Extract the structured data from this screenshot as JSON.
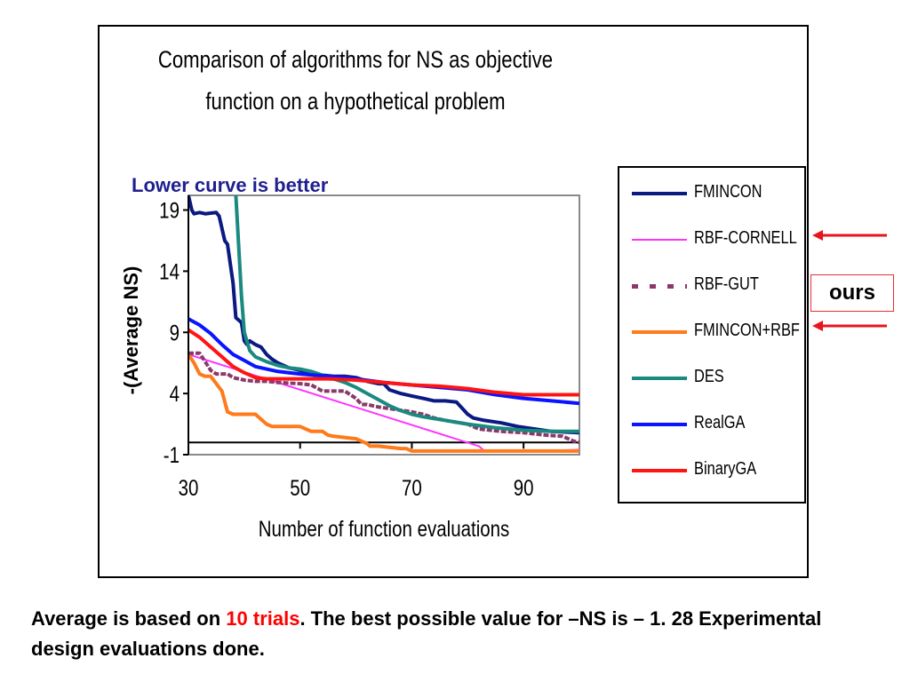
{
  "chart_data": {
    "type": "line",
    "title": "Comparison of algorithms for NS as objective function on a hypothetical problem",
    "title_lines": [
      "Comparison of algorithms for NS as objective",
      "function on a hypothetical problem"
    ],
    "annotation": "Lower curve is better",
    "xlabel": "Number of function evaluations",
    "ylabel": "-(Average NS)",
    "xlim": [
      30,
      100
    ],
    "ylim": [
      -1,
      20.2
    ],
    "xticks": [
      30,
      50,
      70,
      90
    ],
    "yticks": [
      -1,
      4,
      9,
      14,
      19
    ],
    "hline": 0,
    "grid": false,
    "legend_position": "right",
    "series": [
      {
        "name": "FMINCON",
        "color": "#0a1a80",
        "style": "solid",
        "width": 4,
        "x": [
          30,
          30.6,
          31,
          32,
          33,
          35,
          35.5,
          36.5,
          37,
          38,
          38.5,
          39,
          39.5,
          40,
          40.5,
          41,
          42,
          43,
          44,
          45,
          46,
          47,
          48,
          49,
          50,
          52,
          54,
          56,
          58,
          60,
          62,
          64,
          65,
          66,
          68,
          70,
          72,
          74,
          76,
          78,
          80,
          81,
          83,
          86,
          89,
          92,
          95,
          100
        ],
        "y": [
          20.2,
          19.0,
          18.7,
          18.8,
          18.7,
          18.8,
          18.5,
          16.5,
          16.2,
          13.0,
          10.2,
          10.0,
          9.8,
          8.3,
          8.0,
          8.3,
          8.0,
          7.8,
          7.2,
          6.8,
          6.5,
          6.3,
          6.1,
          6.0,
          5.9,
          5.7,
          5.5,
          5.4,
          5.4,
          5.3,
          5.0,
          4.8,
          4.8,
          4.3,
          4.0,
          3.8,
          3.6,
          3.4,
          3.4,
          3.3,
          2.3,
          2.0,
          1.8,
          1.6,
          1.3,
          1.1,
          0.9,
          0.8
        ]
      },
      {
        "name": "RBF-CORNELL",
        "color": "#ff33ff",
        "style": "solid",
        "width": 2,
        "x": [
          30,
          82,
          83,
          92,
          93,
          100
        ],
        "y": [
          7.2,
          -0.3,
          -0.7,
          -0.7,
          -0.7,
          -0.6
        ]
      },
      {
        "name": "RBF-GUT",
        "color": "#8a3a6a",
        "style": "dashed",
        "width": 4,
        "x": [
          30,
          32,
          33,
          34,
          35,
          37,
          38,
          40,
          42,
          44,
          46,
          50,
          52,
          54,
          55,
          58,
          60,
          61,
          62,
          64,
          67,
          70,
          72,
          74,
          76,
          80,
          82,
          86,
          90,
          94,
          97,
          98,
          99,
          100
        ],
        "y": [
          7.3,
          7.3,
          6.6,
          5.9,
          5.6,
          5.6,
          5.3,
          5.1,
          5.0,
          5.0,
          4.9,
          4.8,
          4.7,
          4.2,
          4.2,
          4.2,
          3.6,
          3.1,
          3.1,
          2.9,
          2.7,
          2.5,
          2.3,
          2.0,
          1.8,
          1.5,
          1.1,
          0.9,
          0.8,
          0.6,
          0.5,
          0.3,
          0.1,
          0.0
        ]
      },
      {
        "name": "FMINCON+RBF",
        "color": "#ff7a1a",
        "style": "solid",
        "width": 4,
        "x": [
          30,
          31,
          32,
          33,
          34,
          35,
          36,
          37,
          38,
          40,
          42,
          44,
          45,
          46,
          50,
          52,
          54,
          55,
          56,
          60,
          62,
          62.5,
          64,
          66,
          68,
          69,
          70,
          80,
          90,
          93,
          100
        ],
        "y": [
          7.2,
          6.5,
          5.6,
          5.4,
          5.4,
          4.8,
          4.2,
          2.5,
          2.3,
          2.3,
          2.3,
          1.5,
          1.3,
          1.3,
          1.3,
          0.9,
          0.9,
          0.6,
          0.5,
          0.3,
          -0.1,
          -0.3,
          -0.3,
          -0.4,
          -0.5,
          -0.5,
          -0.7,
          -0.7,
          -0.7,
          -0.7,
          -0.7
        ]
      },
      {
        "name": "DES",
        "color": "#1a8a80",
        "style": "solid",
        "width": 4,
        "x": [
          38.5,
          39.5,
          40,
          41,
          42,
          44,
          46,
          48,
          50,
          52,
          54,
          56,
          58,
          60,
          62,
          64,
          66,
          68,
          70,
          72,
          76,
          80,
          85,
          90,
          95,
          100
        ],
        "y": [
          20.2,
          12.0,
          9.0,
          7.5,
          7.0,
          6.6,
          6.3,
          6.1,
          6.0,
          5.8,
          5.5,
          5.2,
          4.9,
          4.5,
          4.0,
          3.5,
          3.0,
          2.6,
          2.3,
          2.1,
          1.8,
          1.5,
          1.2,
          1.0,
          0.9,
          0.9
        ]
      },
      {
        "name": "RealGA",
        "color": "#0a14ff",
        "style": "solid",
        "width": 4,
        "x": [
          30,
          32,
          34,
          36,
          38,
          40,
          42,
          44,
          46,
          48,
          50,
          55,
          60,
          65,
          70,
          75,
          80,
          85,
          90,
          95,
          100
        ],
        "y": [
          10.1,
          9.6,
          8.9,
          8.0,
          7.2,
          6.7,
          6.2,
          6.0,
          5.8,
          5.7,
          5.6,
          5.4,
          5.2,
          4.9,
          4.7,
          4.5,
          4.3,
          3.9,
          3.6,
          3.4,
          3.2
        ]
      },
      {
        "name": "BinaryGA",
        "color": "#ff1414",
        "style": "solid",
        "width": 4,
        "x": [
          30,
          32,
          34,
          36,
          38,
          40,
          42,
          44,
          46,
          48,
          50,
          55,
          60,
          65,
          70,
          75,
          80,
          85,
          90,
          95,
          100
        ],
        "y": [
          9.2,
          8.6,
          7.8,
          7.0,
          6.2,
          5.7,
          5.3,
          5.2,
          5.2,
          5.2,
          5.2,
          5.2,
          5.1,
          4.9,
          4.7,
          4.6,
          4.4,
          4.1,
          3.9,
          3.9,
          3.9
        ]
      }
    ]
  },
  "legend": [
    {
      "label": "FMINCON",
      "color": "#0a1a80",
      "style": "solid"
    },
    {
      "label": "RBF-CORNELL",
      "color": "#ff33ff",
      "style": "thin"
    },
    {
      "label": "RBF-GUT",
      "color": "#8a3a6a",
      "style": "dashed"
    },
    {
      "label": "FMINCON+RBF",
      "color": "#ff7a1a",
      "style": "solid"
    },
    {
      "label": "DES",
      "color": "#1a8a80",
      "style": "solid"
    },
    {
      "label": "RealGA",
      "color": "#0a14ff",
      "style": "solid"
    },
    {
      "label": "BinaryGA",
      "color": "#ff1414",
      "style": "solid"
    }
  ],
  "callout": {
    "label": "ours",
    "points_to": [
      "RBF-CORNELL",
      "FMINCON+RBF"
    ],
    "arrow_color": "#e8141e"
  },
  "caption": {
    "part1": "Average is based on ",
    "highlight": "10 trials",
    "part2": ". The best possible value for –NS is – 1.  28 Experimental design evaluations done.",
    "highlight_color": "#ff0000"
  }
}
